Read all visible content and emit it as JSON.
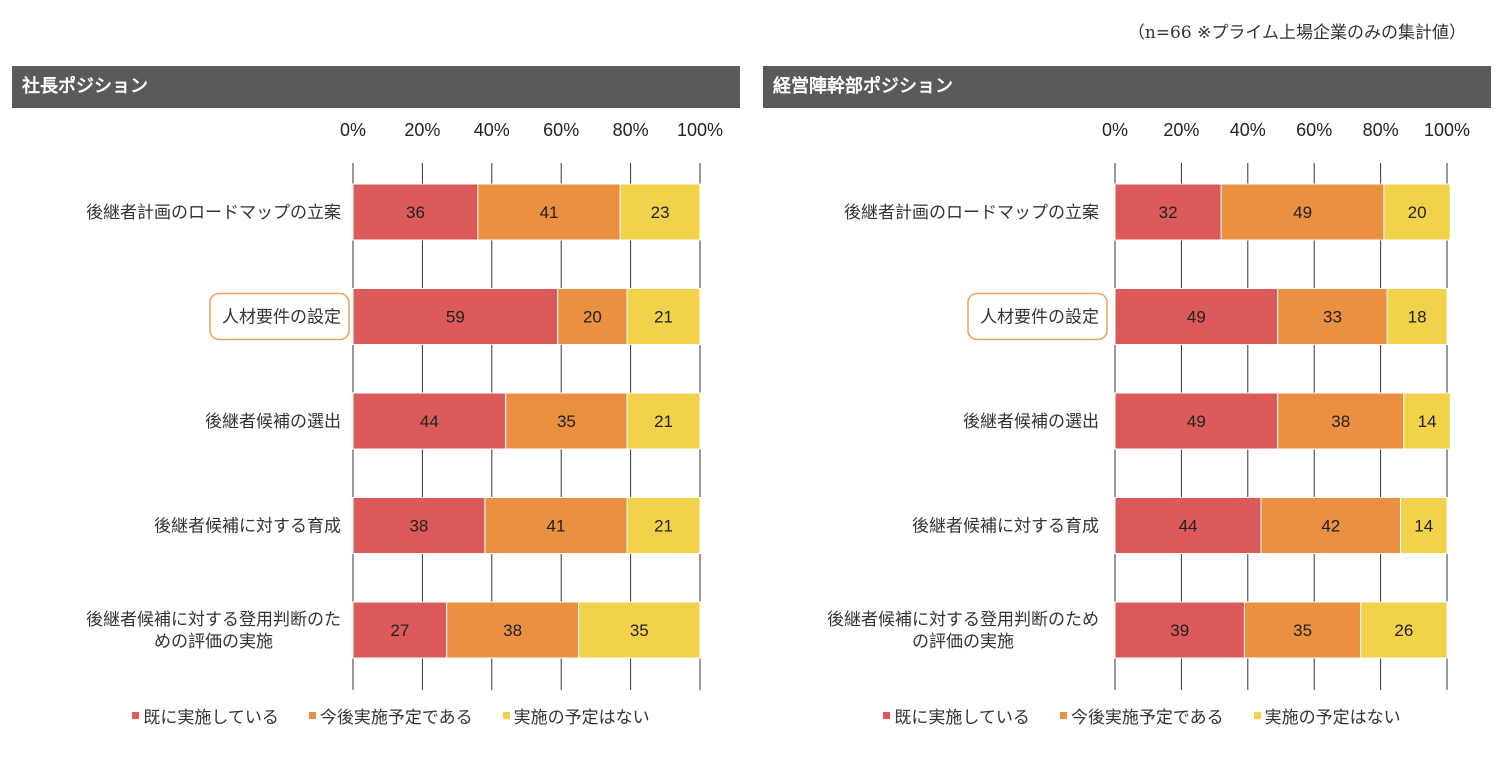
{
  "note": "（n=66 ※プライム上場企業のみの集計値）",
  "colors": {
    "implemented": "#dd5a5a",
    "planned": "#ea9040",
    "not_planned": "#f2d24a",
    "header_bg": "#5a5a5a",
    "highlight": "#f0a560",
    "axis": "#333333"
  },
  "legend": [
    {
      "label": "既に実施している",
      "color": "#dd5a5a"
    },
    {
      "label": "今後実施予定である",
      "color": "#ea9040"
    },
    {
      "label": "実施の予定はない",
      "color": "#f2d24a"
    }
  ],
  "chart_data": [
    {
      "type": "bar",
      "orientation": "horizontal",
      "stacked": true,
      "title": "社長ポジション",
      "xlim": [
        0,
        100
      ],
      "x_ticks": [
        "0%",
        "20%",
        "40%",
        "60%",
        "80%",
        "100%"
      ],
      "categories": [
        {
          "lines": [
            "後継者計画のロードマップの立案"
          ],
          "highlight": false
        },
        {
          "lines": [
            "人材要件の設定"
          ],
          "highlight": true
        },
        {
          "lines": [
            "後継者候補の選出"
          ],
          "highlight": false
        },
        {
          "lines": [
            "後継者候補に対する育成"
          ],
          "highlight": false
        },
        {
          "lines": [
            "後継者候補に対する登用判断のた",
            "めの評価の実施"
          ],
          "highlight": false
        }
      ],
      "series": [
        {
          "name": "既に実施している",
          "values": [
            36,
            59,
            44,
            38,
            27
          ]
        },
        {
          "name": "今後実施予定である",
          "values": [
            41,
            20,
            35,
            41,
            38
          ]
        },
        {
          "name": "実施の予定はない",
          "values": [
            23,
            21,
            21,
            21,
            35
          ]
        }
      ]
    },
    {
      "type": "bar",
      "orientation": "horizontal",
      "stacked": true,
      "title": "経営陣幹部ポジション",
      "xlim": [
        0,
        100
      ],
      "x_ticks": [
        "0%",
        "20%",
        "40%",
        "60%",
        "80%",
        "100%"
      ],
      "categories": [
        {
          "lines": [
            "後継者計画のロードマップの立案"
          ],
          "highlight": false
        },
        {
          "lines": [
            "人材要件の設定"
          ],
          "highlight": true
        },
        {
          "lines": [
            "後継者候補の選出"
          ],
          "highlight": false
        },
        {
          "lines": [
            "後継者候補に対する育成"
          ],
          "highlight": false
        },
        {
          "lines": [
            "後継者候補に対する登用判断のため",
            "の評価の実施"
          ],
          "highlight": false
        }
      ],
      "series": [
        {
          "name": "既に実施している",
          "values": [
            32,
            49,
            49,
            44,
            39
          ]
        },
        {
          "name": "今後実施予定である",
          "values": [
            49,
            33,
            38,
            42,
            35
          ]
        },
        {
          "name": "実施の予定はない",
          "values": [
            20,
            18,
            14,
            14,
            26
          ]
        }
      ]
    }
  ]
}
